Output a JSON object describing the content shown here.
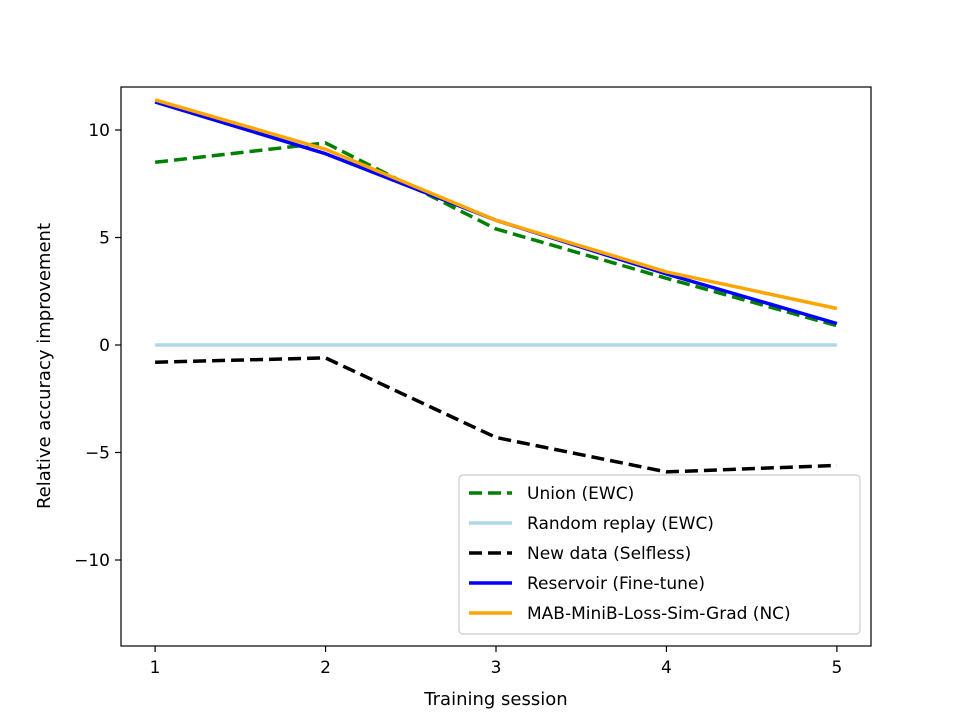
{
  "chart_data": {
    "type": "line",
    "title": "",
    "xlabel": "Training session",
    "ylabel": "Relative accuracy improvement",
    "x": [
      1,
      2,
      3,
      4,
      5
    ],
    "xlim": [
      0.8,
      5.2
    ],
    "ylim": [
      -14,
      12
    ],
    "xticks": [
      1,
      2,
      3,
      4,
      5
    ],
    "yticks": [
      -10,
      -5,
      0,
      5,
      10
    ],
    "ytick_labels": [
      "−10",
      "−5",
      "0",
      "5",
      "10"
    ],
    "grid": false,
    "legend_position": "lower-right",
    "series": [
      {
        "name": "Union (EWC)",
        "values": [
          8.5,
          9.4,
          5.4,
          3.1,
          0.9
        ],
        "color": "#008000",
        "dash": "dashed"
      },
      {
        "name": "Random replay (EWC)",
        "values": [
          0,
          0,
          0,
          0,
          0
        ],
        "color": "#add8e6",
        "dash": "solid"
      },
      {
        "name": "New data (Selfless)",
        "values": [
          -0.8,
          -0.6,
          -4.3,
          -5.9,
          -5.6
        ],
        "color": "#000000",
        "dash": "dashed"
      },
      {
        "name": "Reservoir (Fine-tune)",
        "values": [
          11.3,
          8.9,
          5.8,
          3.3,
          1.0
        ],
        "color": "#0000ff",
        "dash": "solid"
      },
      {
        "name": "MAB-MiniB-Loss-Sim-Grad (NC)",
        "values": [
          11.4,
          9.1,
          5.8,
          3.4,
          1.7
        ],
        "color": "#ffa500",
        "dash": "solid"
      }
    ]
  }
}
